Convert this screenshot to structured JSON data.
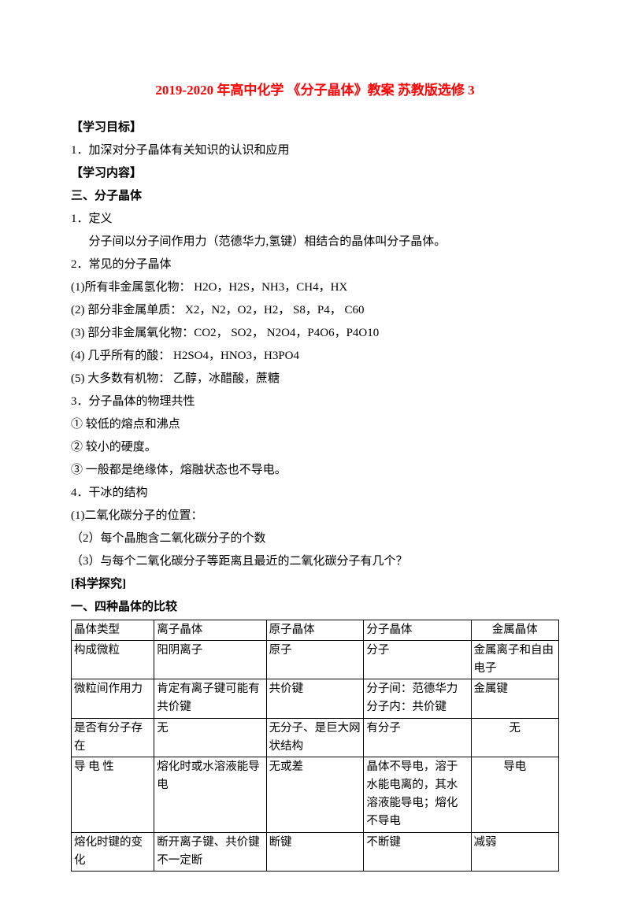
{
  "title": "2019-2020 年高中化学 《分子晶体》教案 苏教版选修 3",
  "headings": {
    "objective": "【学习目标】",
    "content": "【学习内容】",
    "section3": "三、分子晶体",
    "explore": "[科学探究]",
    "compare": "一、四种晶体的比较"
  },
  "lines": {
    "l1": "1．加深对分子晶体有关知识的认识和应用",
    "l2": "1．定义",
    "l3": "分子间以分子间作用力（范德华力,氢键）相结合的晶体叫分子晶体。",
    "l4": "2．常见的分子晶体",
    "l5": "(1)所有非金属氢化物：   H2O，H2S，NH3，CH4，HX",
    "l6": "(2) 部分非金属单质：  X2，N2，O2，H2，  S8，P4，  C60",
    "l7": "(3) 部分非金属氧化物：CO2，  SO2，  N2O4，P4O6，P4O10",
    "l8": "(4) 几乎所有的酸：    H2SO4，HNO3，H3PO4",
    "l9": "(5) 大多数有机物：    乙醇，冰醋酸，蔗糖",
    "l10": "3．分子晶体的物理共性",
    "l11": "① 较低的熔点和沸点",
    "l12": "② 较小的硬度。",
    "l13": "③ 一般都是绝缘体，熔融状态也不导电。",
    "l14": "4．干冰的结构",
    "l15": "(1)二氧化碳分子的位置：",
    "l16": "（2）每个晶胞含二氧化碳分子的个数",
    "l17": "（3）与每个二氧化碳分子等距离且最近的二氧化碳分子有几个？"
  },
  "table": {
    "rows": [
      [
        "晶体类型",
        "离子晶体",
        "原子晶体",
        "分子晶体",
        "金属晶体"
      ],
      [
        "构成微粒",
        "  阳阴离子",
        "原子",
        "分子",
        "  金属离子和自由电子"
      ],
      [
        "微粒间作用力",
        "  肯定有离子键可能有共价键",
        "共价键",
        "  分子间：范德华力分子内：共价键",
        "金属键"
      ],
      [
        "是否有分子存在",
        "无",
        "  无分子、是巨大网状结构",
        "有分子",
        "无"
      ],
      [
        "导 电 性",
        "  熔化时或水溶液能导电",
        "无或差",
        "  晶体不导电，溶于水能电离的，其水溶液能导电；熔化不导电",
        "导电"
      ],
      [
        "熔化时键的变化",
        "  断开离子键、共价键不一定断",
        "断键",
        "不断键",
        "减弱"
      ]
    ],
    "align": [
      [
        "l",
        "l",
        "l",
        "l",
        "c"
      ],
      [
        "l",
        "l",
        "l",
        "l",
        "l"
      ],
      [
        "l",
        "l",
        "l",
        "l",
        "l"
      ],
      [
        "l",
        "l",
        "l",
        "l",
        "c"
      ],
      [
        "l",
        "l",
        "l",
        "l",
        "c"
      ],
      [
        "l",
        "l",
        "l",
        "l",
        "l"
      ]
    ]
  }
}
